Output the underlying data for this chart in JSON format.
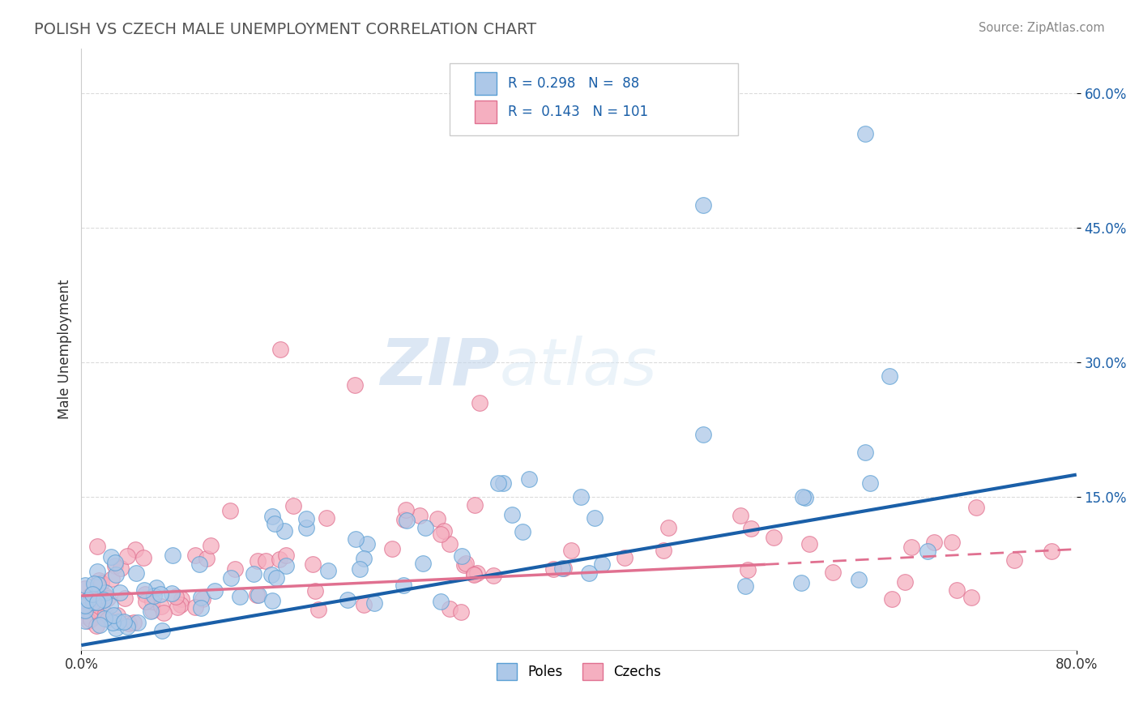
{
  "title": "POLISH VS CZECH MALE UNEMPLOYMENT CORRELATION CHART",
  "source_text": "Source: ZipAtlas.com",
  "ylabel": "Male Unemployment",
  "xlim": [
    0.0,
    0.8
  ],
  "ylim": [
    -0.02,
    0.65
  ],
  "ytick_positions": [
    0.15,
    0.3,
    0.45,
    0.6
  ],
  "ytick_labels": [
    "15.0%",
    "30.0%",
    "45.0%",
    "60.0%"
  ],
  "poles_color": "#adc8e8",
  "czechs_color": "#f5afc0",
  "poles_edge": "#5a9fd4",
  "czechs_edge": "#e07090",
  "trend_poles_color": "#1a5fa8",
  "trend_czechs_color": "#e07090",
  "R_poles": 0.298,
  "N_poles": 88,
  "R_czechs": 0.143,
  "N_czechs": 101,
  "legend_label_poles": "Poles",
  "legend_label_czechs": "Czechs",
  "watermark_zip": "ZIP",
  "watermark_atlas": "atlas",
  "background_color": "#ffffff",
  "grid_color": "#cccccc",
  "title_color": "#555555",
  "trend_poles_start_x": 0.0,
  "trend_poles_start_y": -0.015,
  "trend_poles_end_x": 0.8,
  "trend_poles_end_y": 0.175,
  "trend_czechs_start_x": 0.0,
  "trend_czechs_start_y": 0.04,
  "trend_czechs_end_x": 0.55,
  "trend_czechs_end_y": 0.075,
  "trend_czechs_dash_start_x": 0.55,
  "trend_czechs_dash_start_y": 0.075,
  "trend_czechs_dash_end_x": 0.8,
  "trend_czechs_dash_end_y": 0.092
}
